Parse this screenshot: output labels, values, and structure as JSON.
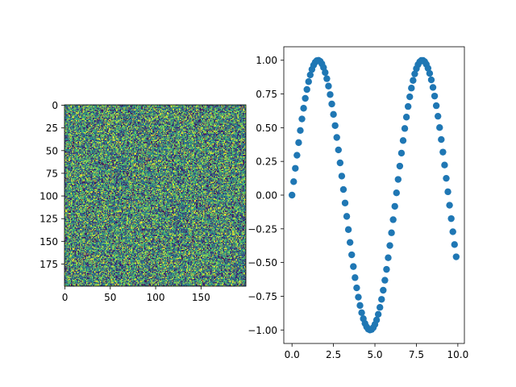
{
  "chart_data": [
    {
      "type": "heatmap",
      "title": "",
      "xlabel": "",
      "ylabel": "",
      "rows": 200,
      "cols": 200,
      "value_range": [
        0,
        1
      ],
      "colormap": "viridis",
      "content": "uniform random noise",
      "x_ticks": [
        0,
        50,
        100,
        150
      ],
      "y_ticks": [
        0,
        25,
        50,
        75,
        100,
        125,
        150,
        175
      ],
      "x_tick_labels": [
        "0",
        "50",
        "100",
        "150"
      ],
      "y_tick_labels": [
        "0",
        "25",
        "50",
        "75",
        "100",
        "125",
        "150",
        "175"
      ]
    },
    {
      "type": "scatter",
      "title": "",
      "xlabel": "",
      "ylabel": "",
      "function": "y = sin(x)",
      "x": [
        0.0,
        0.1,
        0.2,
        0.3,
        0.4,
        0.5,
        0.6,
        0.7,
        0.8,
        0.9,
        1.0,
        1.1,
        1.2,
        1.3,
        1.4,
        1.5,
        1.6,
        1.7,
        1.8,
        1.9,
        2.0,
        2.1,
        2.2,
        2.3,
        2.4,
        2.5,
        2.6,
        2.7,
        2.8,
        2.9,
        3.0,
        3.1,
        3.2,
        3.3,
        3.4,
        3.5,
        3.6,
        3.7,
        3.8,
        3.9,
        4.0,
        4.1,
        4.2,
        4.3,
        4.4,
        4.5,
        4.6,
        4.7,
        4.8,
        4.9,
        5.0,
        5.1,
        5.2,
        5.3,
        5.4,
        5.5,
        5.6,
        5.7,
        5.8,
        5.9,
        6.0,
        6.1,
        6.2,
        6.3,
        6.4,
        6.5,
        6.6,
        6.7,
        6.8,
        6.9,
        7.0,
        7.1,
        7.2,
        7.3,
        7.4,
        7.5,
        7.6,
        7.7,
        7.8,
        7.9,
        8.0,
        8.1,
        8.2,
        8.3,
        8.4,
        8.5,
        8.6,
        8.7,
        8.8,
        8.9,
        9.0,
        9.1,
        9.2,
        9.3,
        9.4,
        9.5,
        9.6,
        9.7,
        9.8,
        9.9
      ],
      "y": [
        0.0,
        0.0998,
        0.1987,
        0.2955,
        0.3894,
        0.4794,
        0.5646,
        0.6442,
        0.7174,
        0.7833,
        0.8415,
        0.8912,
        0.932,
        0.9636,
        0.9854,
        0.9975,
        0.9996,
        0.9917,
        0.9738,
        0.9463,
        0.9093,
        0.8632,
        0.8085,
        0.7457,
        0.6755,
        0.5985,
        0.5155,
        0.4274,
        0.335,
        0.2392,
        0.1411,
        0.0416,
        -0.0584,
        -0.1577,
        -0.2555,
        -0.3508,
        -0.4425,
        -0.5298,
        -0.6119,
        -0.6878,
        -0.7568,
        -0.8183,
        -0.8716,
        -0.9162,
        -0.9516,
        -0.9775,
        -0.9937,
        -0.9999,
        -0.9962,
        -0.9825,
        -0.9589,
        -0.9258,
        -0.8835,
        -0.8323,
        -0.7728,
        -0.7055,
        -0.6313,
        -0.5507,
        -0.4646,
        -0.3739,
        -0.2794,
        -0.1822,
        -0.0831,
        0.0168,
        0.1165,
        0.2151,
        0.3115,
        0.4048,
        0.4941,
        0.5784,
        0.657,
        0.729,
        0.7937,
        0.8504,
        0.8987,
        0.938,
        0.9679,
        0.9882,
        0.9985,
        0.9989,
        0.9894,
        0.9699,
        0.9407,
        0.9022,
        0.8546,
        0.7985,
        0.7344,
        0.663,
        0.5849,
        0.501,
        0.4121,
        0.319,
        0.2229,
        0.1245,
        0.0248,
        -0.0752,
        -0.1743,
        -0.2718,
        -0.3665,
        -0.4575
      ],
      "xlim": [
        -0.495,
        10.395
      ],
      "ylim": [
        -1.1,
        1.1
      ],
      "x_ticks": [
        0.0,
        2.5,
        5.0,
        7.5,
        10.0
      ],
      "y_ticks": [
        -1.0,
        -0.75,
        -0.5,
        -0.25,
        0.0,
        0.25,
        0.5,
        0.75,
        1.0
      ],
      "x_tick_labels": [
        "0.0",
        "2.5",
        "5.0",
        "7.5",
        "10.0"
      ],
      "y_tick_labels": [
        "−1.00",
        "−0.75",
        "−0.50",
        "−0.25",
        "0.00",
        "0.25",
        "0.50",
        "0.75",
        "1.00"
      ],
      "marker_color": "#1f77b4"
    }
  ]
}
